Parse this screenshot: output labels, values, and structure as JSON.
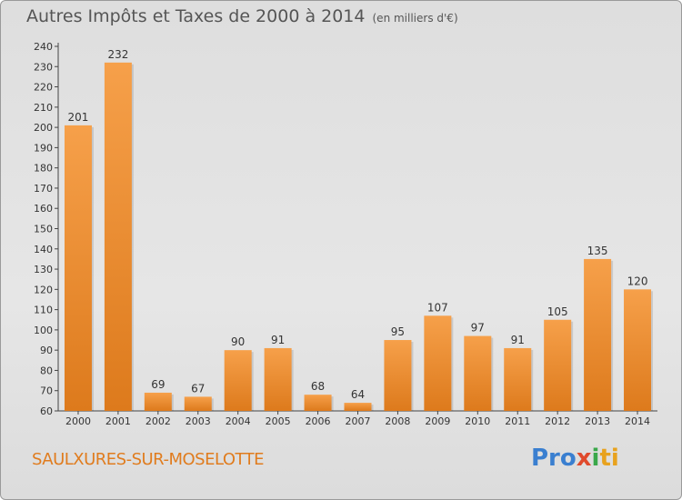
{
  "header": {
    "title": "Autres Impôts et Taxes de 2000 à 2014",
    "unit": "(en milliers d'€)"
  },
  "footer": {
    "commune": "SAULXURES-SUR-MOSELOTTE",
    "brand": [
      "Pro",
      "x",
      "i",
      "ti"
    ]
  },
  "colors": {
    "bar_light": "#f6a04a",
    "bar_dark": "#dd7a1c",
    "commune_text": "#e07c1e"
  },
  "chart_data": {
    "type": "bar",
    "title": "Autres Impôts et Taxes de 2000 à 2014",
    "categories": [
      "2000",
      "2001",
      "2002",
      "2003",
      "2004",
      "2005",
      "2006",
      "2007",
      "2008",
      "2009",
      "2010",
      "2011",
      "2012",
      "2013",
      "2014"
    ],
    "values": [
      201,
      232,
      69,
      67,
      90,
      91,
      68,
      64,
      95,
      107,
      97,
      91,
      105,
      135,
      120
    ],
    "ylim": [
      60,
      240
    ],
    "yticks": [
      60,
      70,
      80,
      90,
      100,
      110,
      120,
      130,
      140,
      150,
      160,
      170,
      180,
      190,
      200,
      210,
      220,
      230,
      240
    ],
    "grid": false,
    "data_labels": true
  }
}
